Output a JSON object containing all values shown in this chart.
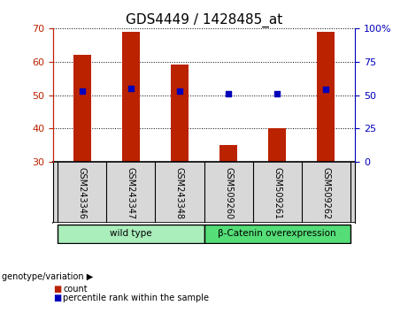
{
  "title": "GDS4449 / 1428485_at",
  "samples": [
    "GSM243346",
    "GSM243347",
    "GSM243348",
    "GSM509260",
    "GSM509261",
    "GSM509262"
  ],
  "bar_values": [
    62,
    69,
    59,
    35,
    40,
    69
  ],
  "percentile_values": [
    53,
    55,
    53,
    51,
    51,
    54
  ],
  "y_min": 30,
  "y_max": 70,
  "y_ticks": [
    30,
    40,
    50,
    60,
    70
  ],
  "y2_ticks": [
    0,
    25,
    50,
    75,
    100
  ],
  "y2_labels": [
    "0",
    "25",
    "50",
    "75",
    "100%"
  ],
  "bar_color": "#bb2200",
  "percentile_color": "#0000bb",
  "groups": [
    {
      "label": "wild type",
      "indices": [
        0,
        1,
        2
      ],
      "color": "#aaeebb"
    },
    {
      "label": "β-Catenin overexpression",
      "indices": [
        3,
        4,
        5
      ],
      "color": "#55dd77"
    }
  ],
  "group_label_prefix": "genotype/variation",
  "legend_items": [
    {
      "label": "count",
      "color": "#bb2200"
    },
    {
      "label": "percentile rank within the sample",
      "color": "#0000bb"
    }
  ],
  "grid_color": "black",
  "grid_linestyle": ":",
  "sample_bg": "#d8d8d8",
  "plot_bg": "white",
  "title_fontsize": 11,
  "tick_fontsize": 8,
  "bar_width": 0.35
}
